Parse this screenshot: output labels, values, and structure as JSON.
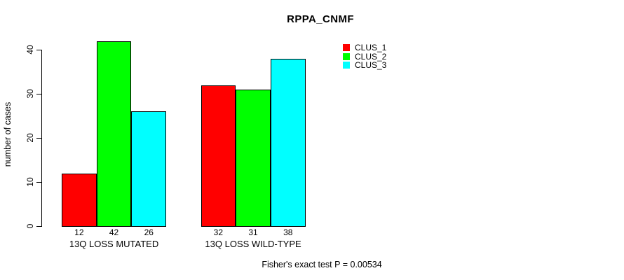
{
  "chart_data": {
    "type": "bar",
    "title": "RPPA_CNMF",
    "categories": [
      "13Q LOSS MUTATED",
      "13Q LOSS WILD-TYPE"
    ],
    "series": [
      {
        "name": "CLUS_1",
        "color": "#ff0000",
        "values": [
          12,
          32
        ]
      },
      {
        "name": "CLUS_2",
        "color": "#00ff00",
        "values": [
          42,
          31
        ]
      },
      {
        "name": "CLUS_3",
        "color": "#00ffff",
        "values": [
          26,
          38
        ]
      }
    ],
    "xlabel": "",
    "ylabel": "number of cases",
    "ylim": [
      0,
      42
    ],
    "yticks": [
      0,
      10,
      20,
      30,
      40
    ],
    "grid": false,
    "bar_borders": "#000000",
    "bar_value_labels_shown": true,
    "legend_position": "top-right",
    "annotation": "Fisher's exact test P = 0.00534"
  }
}
